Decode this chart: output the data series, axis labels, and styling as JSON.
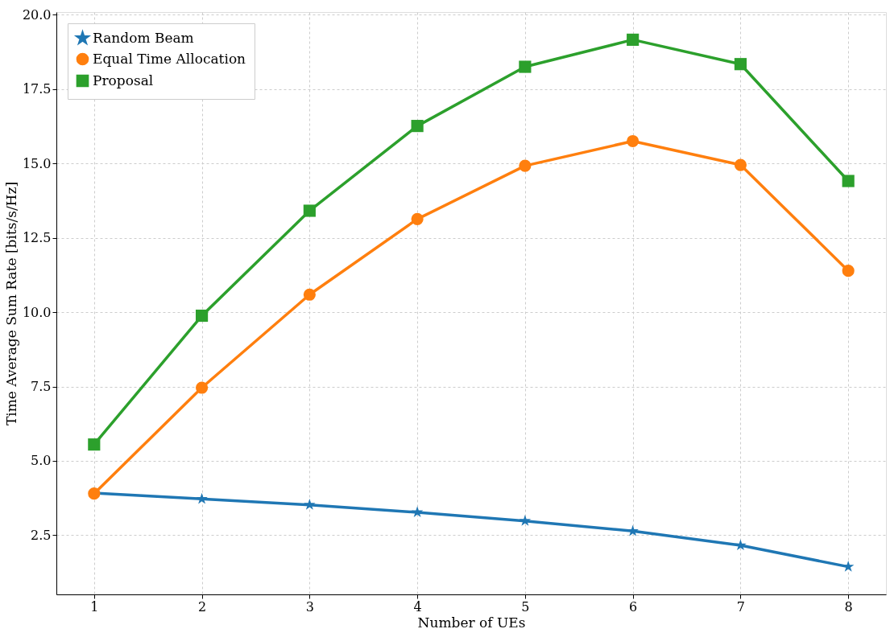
{
  "chart_data": {
    "type": "line",
    "xlabel": "Number of UEs",
    "ylabel": "Time Average Sum Rate [bits/s/Hz]",
    "x": [
      1,
      2,
      3,
      4,
      5,
      6,
      7,
      8
    ],
    "series": [
      {
        "name": "Random Beam",
        "color": "#1f77b4",
        "marker": "star",
        "values": [
          3.92,
          3.72,
          3.52,
          3.27,
          2.98,
          2.64,
          2.16,
          1.44
        ]
      },
      {
        "name": "Equal Time Allocation",
        "color": "#ff7f0e",
        "marker": "circle",
        "values": [
          3.9,
          7.46,
          10.59,
          13.13,
          14.92,
          15.75,
          14.95,
          11.39
        ]
      },
      {
        "name": "Proposal",
        "color": "#2ca02c",
        "marker": "square",
        "values": [
          5.55,
          9.88,
          13.41,
          16.26,
          18.25,
          19.16,
          18.34,
          14.41
        ]
      }
    ],
    "xlim": [
      0.65,
      8.35
    ],
    "xticks": [
      1,
      2,
      3,
      4,
      5,
      6,
      7,
      8
    ],
    "ylim": [
      0.51,
      20.09
    ],
    "yticks": [
      {
        "value": 2.5,
        "label": "2.5"
      },
      {
        "value": 5.0,
        "label": "5.0"
      },
      {
        "value": 7.5,
        "label": "7.5"
      },
      {
        "value": 10.0,
        "label": "10.0"
      },
      {
        "value": 12.5,
        "label": "12.5"
      },
      {
        "value": 15.0,
        "label": "15.0"
      },
      {
        "value": 17.5,
        "label": "17.5"
      },
      {
        "value": 20.0,
        "label": "20.0"
      }
    ],
    "grid": true,
    "legend": "top left",
    "line_style": "solid"
  }
}
